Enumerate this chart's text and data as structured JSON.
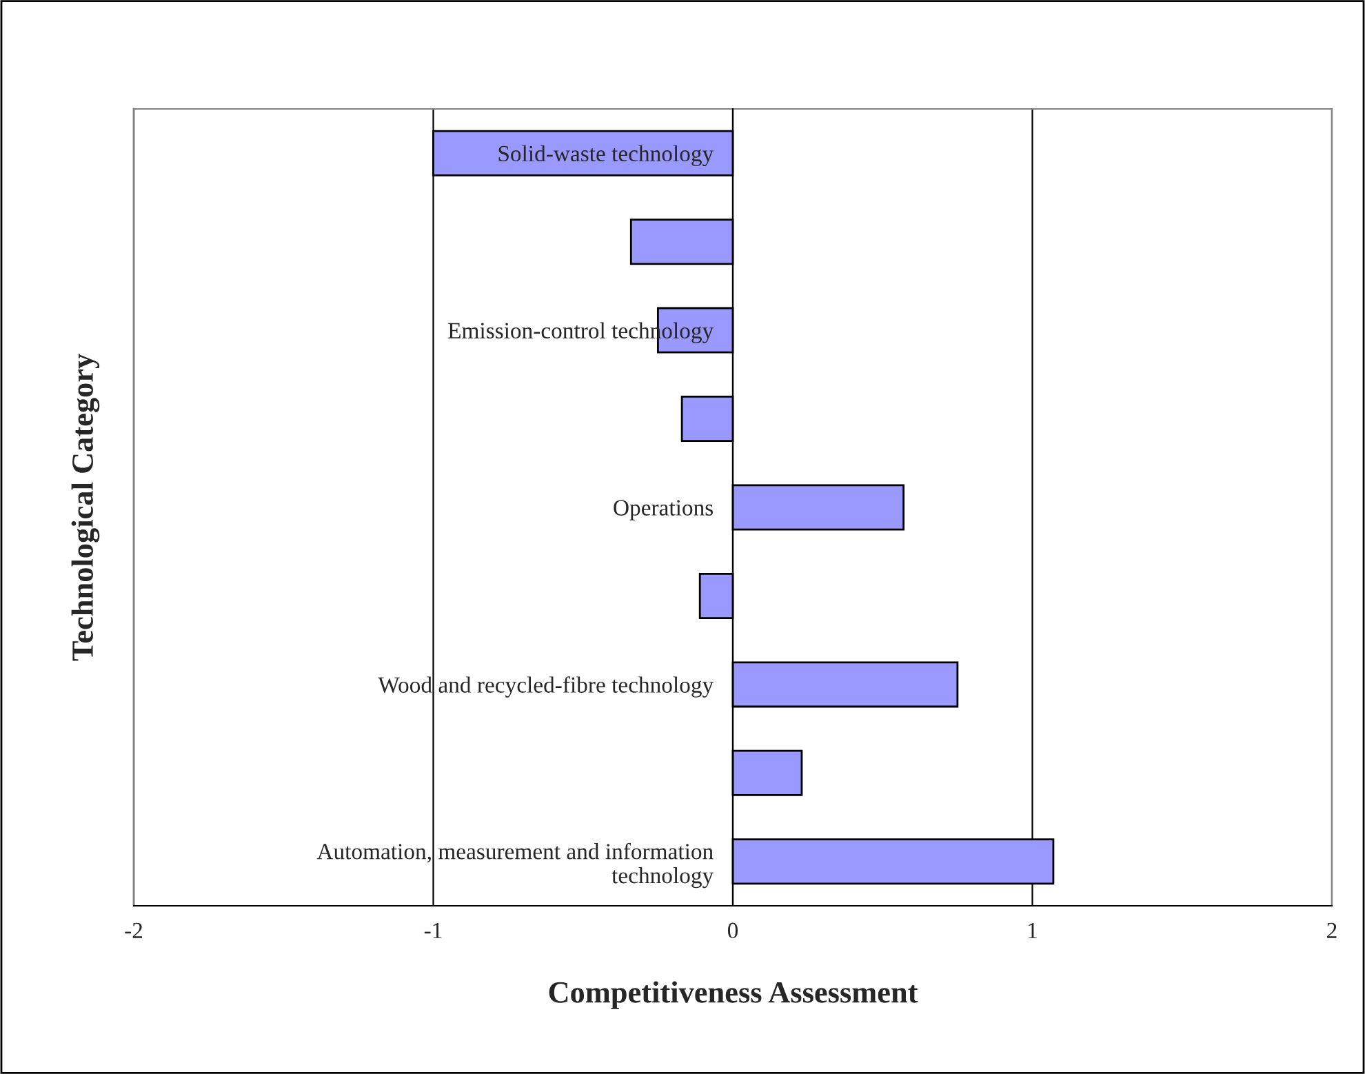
{
  "chart_data": {
    "type": "bar",
    "orientation": "horizontal",
    "xlabel": "Competitiveness Assessment",
    "ylabel": "Technological Category",
    "categories": [
      "Solid-waste technology",
      null,
      "Emission-control technology",
      null,
      "Operations",
      null,
      "Wood and recycled-fibre technology",
      null,
      "Automation, measurement and information\ntechnology"
    ],
    "values": [
      -1.0,
      -0.34,
      -0.25,
      -0.17,
      0.57,
      -0.11,
      0.75,
      0.23,
      1.07
    ],
    "color": "#9999ff",
    "xlim": [
      -2,
      2
    ],
    "xticks": [
      -2,
      -1,
      0,
      1,
      2
    ],
    "grid": "x",
    "legend": false
  }
}
